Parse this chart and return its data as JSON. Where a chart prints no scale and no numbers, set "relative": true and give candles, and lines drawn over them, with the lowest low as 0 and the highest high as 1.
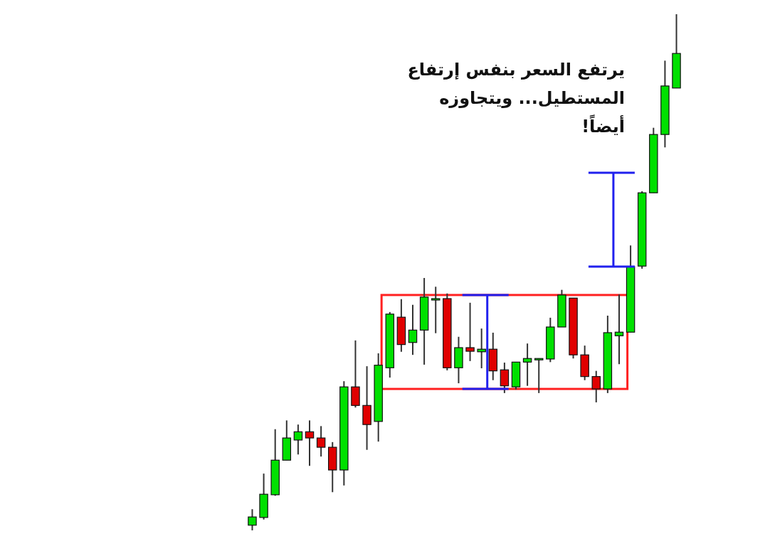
{
  "chart_data": {
    "type": "candlestick",
    "relative": true,
    "title": "يرتفع السعر بنفس إرتفاع المستطيل... ويتجاوزه أيضاً!",
    "categories": [
      null,
      null,
      null,
      null,
      null,
      null,
      null,
      null,
      null,
      null,
      null,
      null,
      null,
      null,
      null,
      null,
      null,
      null,
      null,
      null,
      null,
      null,
      null,
      null,
      null,
      null,
      null,
      null,
      null,
      null,
      null,
      null,
      null,
      null,
      null,
      null,
      null,
      null
    ],
    "ohlc": [
      [
        0.01,
        0.041,
        0,
        0.026
      ],
      [
        0.025,
        0.11,
        0.021,
        0.07
      ],
      [
        0.069,
        0.196,
        0.067,
        0.136
      ],
      [
        0.136,
        0.213,
        0.136,
        0.179
      ],
      [
        0.175,
        0.205,
        0.147,
        0.191
      ],
      [
        0.191,
        0.213,
        0.125,
        0.179
      ],
      [
        0.179,
        0.202,
        0.143,
        0.161
      ],
      [
        0.161,
        0.171,
        0.074,
        0.117
      ],
      [
        0.117,
        0.289,
        0.087,
        0.278
      ],
      [
        0.278,
        0.368,
        0.238,
        0.242
      ],
      [
        0.242,
        0.318,
        0.156,
        0.205
      ],
      [
        0.211,
        0.343,
        0.172,
        0.32
      ],
      [
        0.315,
        0.423,
        0.296,
        0.419
      ],
      [
        0.413,
        0.448,
        0.346,
        0.36
      ],
      [
        0.364,
        0.437,
        0.34,
        0.388
      ],
      [
        0.388,
        0.489,
        0.321,
        0.452
      ],
      [
        0.449,
        0.472,
        0.382,
        0.449
      ],
      [
        0.449,
        0.459,
        0.31,
        0.315
      ],
      [
        0.315,
        0.375,
        0.285,
        0.354
      ],
      [
        0.354,
        0.441,
        0.328,
        0.347
      ],
      [
        0.346,
        0.391,
        0.314,
        0.351
      ],
      [
        0.351,
        0.383,
        0.291,
        0.309
      ],
      [
        0.311,
        0.325,
        0.266,
        0.28
      ],
      [
        0.278,
        0.326,
        0.273,
        0.326
      ],
      [
        0.326,
        0.362,
        0.28,
        0.333
      ],
      [
        0.333,
        0.333,
        0.266,
        0.333
      ],
      [
        0.332,
        0.412,
        0.326,
        0.394
      ],
      [
        0.394,
        0.466,
        0.394,
        0.456
      ],
      [
        0.45,
        0.45,
        0.333,
        0.34
      ],
      [
        0.34,
        0.358,
        0.291,
        0.298
      ],
      [
        0.298,
        0.309,
        0.248,
        0.274
      ],
      [
        0.274,
        0.416,
        0.266,
        0.383
      ],
      [
        0.377,
        0.457,
        0.322,
        0.384
      ],
      [
        0.384,
        0.552,
        0.384,
        0.511
      ],
      [
        0.512,
        0.657,
        0.507,
        0.654
      ],
      [
        0.654,
        0.78,
        0.654,
        0.767
      ],
      [
        0.767,
        0.91,
        0.742,
        0.861
      ],
      [
        0.857,
        1,
        0.857,
        0.924
      ]
    ],
    "colors": [
      "#00e000",
      "#00e000",
      "#00e000",
      "#00e000",
      "#00e000",
      "#e00000",
      "#e00000",
      "#e00000",
      "#00e000",
      "#e00000",
      "#e00000",
      "#00e000",
      "#00e000",
      "#e00000",
      "#00e000",
      "#00e000",
      "#00e000",
      "#e00000",
      "#00e000",
      "#e00000",
      "#00e000",
      "#e00000",
      "#e00000",
      "#00e000",
      "#00e000",
      "#00e000",
      "#00e000",
      "#00e000",
      "#e00000",
      "#e00000",
      "#e00000",
      "#00e000",
      "#00e000",
      "#00e000",
      "#00e000",
      "#00e000",
      "#00e000",
      "#00e000"
    ]
  }
}
